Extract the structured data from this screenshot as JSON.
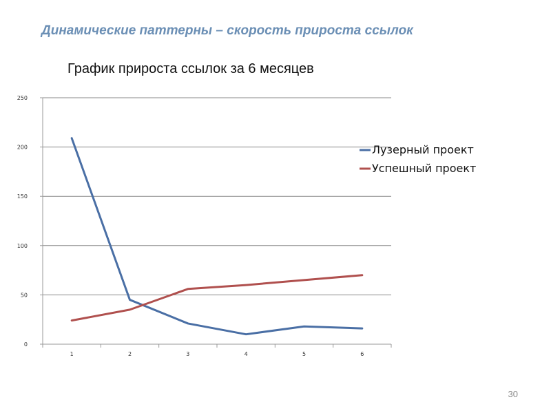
{
  "slide": {
    "title": "Динамические паттерны – скорость прироста ссылок",
    "page_number": "30"
  },
  "colors": {
    "title": "#6b8fb5",
    "series_loser": "#4a6fa5",
    "series_success": "#b0504e",
    "gridline": "#888888"
  },
  "chart_data": {
    "type": "line",
    "title": "График прироста ссылок за 6 месяцев",
    "xlabel": "",
    "ylabel": "",
    "x": [
      1,
      2,
      3,
      4,
      5,
      6
    ],
    "x_tick_labels": [
      "1",
      "2",
      "3",
      "4",
      "5",
      "6"
    ],
    "y_tick_labels": [
      "0",
      "50",
      "100",
      "150",
      "200",
      "250"
    ],
    "ylim": [
      0,
      250
    ],
    "grid": true,
    "legend_position": "right",
    "series": [
      {
        "name": "Лузерный проект",
        "color": "#4a6fa5",
        "values": [
          209,
          45,
          21,
          10,
          18,
          16
        ]
      },
      {
        "name": "Успешный проект",
        "color": "#b0504e",
        "values": [
          24,
          35,
          56,
          60,
          65,
          70
        ]
      }
    ]
  }
}
